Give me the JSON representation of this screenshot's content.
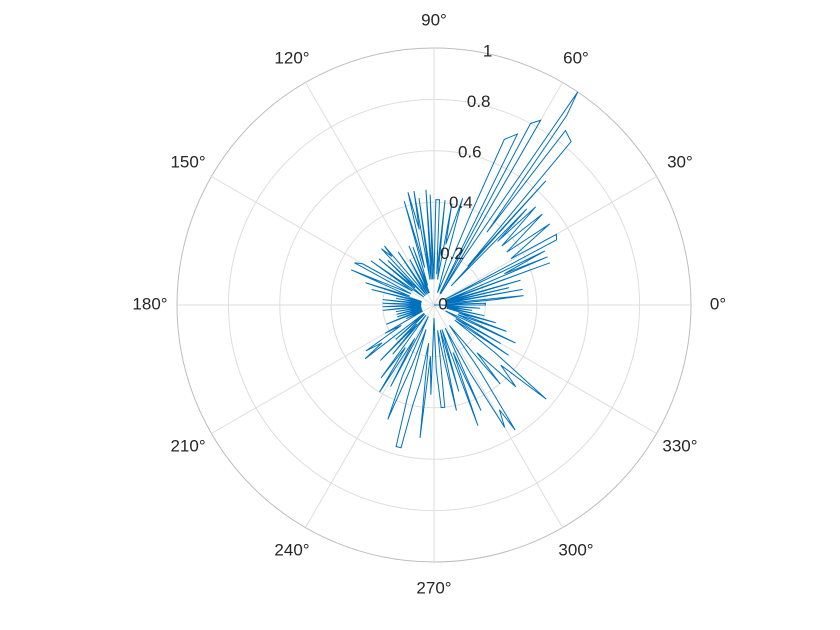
{
  "chart_data": {
    "type": "line",
    "coordinate_system": "polar",
    "theta_ticks": [
      {
        "angle": 0,
        "label": "0°"
      },
      {
        "angle": 30,
        "label": "30°"
      },
      {
        "angle": 60,
        "label": "60°"
      },
      {
        "angle": 90,
        "label": "90°"
      },
      {
        "angle": 120,
        "label": "120°"
      },
      {
        "angle": 150,
        "label": "150°"
      },
      {
        "angle": 180,
        "label": "180°"
      },
      {
        "angle": 210,
        "label": "210°"
      },
      {
        "angle": 240,
        "label": "240°"
      },
      {
        "angle": 270,
        "label": "270°"
      },
      {
        "angle": 300,
        "label": "300°"
      },
      {
        "angle": 330,
        "label": "330°"
      }
    ],
    "r_ticks": [
      {
        "value": 0,
        "label": "0"
      },
      {
        "value": 0.2,
        "label": "0.2"
      },
      {
        "value": 0.4,
        "label": "0.4"
      },
      {
        "value": 0.6,
        "label": "0.6"
      },
      {
        "value": 0.8,
        "label": "0.8"
      },
      {
        "value": 1,
        "label": "1"
      }
    ],
    "rlim": [
      0,
      1
    ],
    "grid": true,
    "series": [
      {
        "color": "#0072BD",
        "points": [
          [
            0,
            0
          ],
          [
            0,
            0.2
          ],
          [
            2,
            0.2
          ],
          [
            3,
            0.05
          ],
          [
            5,
            0.24
          ],
          [
            6,
            0.35
          ],
          [
            8,
            0.05
          ],
          [
            10,
            0.35
          ],
          [
            11,
            0.05
          ],
          [
            13,
            0.3
          ],
          [
            14,
            0.05
          ],
          [
            16,
            0.35
          ],
          [
            18,
            0.05
          ],
          [
            20,
            0.43
          ],
          [
            20,
            0.48
          ],
          [
            21,
            0.05
          ],
          [
            23,
            0.48
          ],
          [
            24,
            0.3
          ],
          [
            26,
            0.48
          ],
          [
            27,
            0.05
          ],
          [
            28,
            0.54
          ],
          [
            30,
            0.55
          ],
          [
            31,
            0.35
          ],
          [
            35,
            0.55
          ],
          [
            36,
            0.35
          ],
          [
            40,
            0.55
          ],
          [
            41,
            0.35
          ],
          [
            44,
            0.55
          ],
          [
            45,
            0.35
          ],
          [
            46,
            0.52
          ],
          [
            48,
            0.1
          ],
          [
            48,
            0.65
          ],
          [
            49,
            0.2
          ],
          [
            50,
            0.83
          ],
          [
            53,
            0.85
          ],
          [
            54,
            0.35
          ],
          [
            55,
            0.9
          ],
          [
            56,
            1.0
          ],
          [
            58,
            0.22
          ],
          [
            59,
            0.05
          ],
          [
            60,
            0.83
          ],
          [
            62,
            0.8
          ],
          [
            63,
            0.05
          ],
          [
            64,
            0.74
          ],
          [
            67,
            0.7
          ],
          [
            68,
            0.38
          ],
          [
            70,
            0.1
          ],
          [
            74,
            0.05
          ],
          [
            75,
            0.43
          ],
          [
            79,
            0.24
          ],
          [
            80,
            0.4
          ],
          [
            82,
            0.1
          ],
          [
            84,
            0.41
          ],
          [
            85,
            0.12
          ],
          [
            87,
            0.41
          ],
          [
            89,
            0.41
          ],
          [
            90,
            0.1
          ],
          [
            92,
            0.43
          ],
          [
            93,
            0.1
          ],
          [
            94,
            0.45
          ],
          [
            96,
            0.1
          ],
          [
            98,
            0.42
          ],
          [
            99,
            0.1
          ],
          [
            100,
            0.45
          ],
          [
            101,
            0.3
          ],
          [
            103,
            0.45
          ],
          [
            104,
            0.15
          ],
          [
            106,
            0.42
          ],
          [
            108,
            0.08
          ],
          [
            110,
            0.24
          ],
          [
            111,
            0.05
          ],
          [
            113,
            0.25
          ],
          [
            115,
            0.05
          ],
          [
            118,
            0.2
          ],
          [
            121,
            0.05
          ],
          [
            124,
            0.25
          ],
          [
            127,
            0.05
          ],
          [
            130,
            0.3
          ],
          [
            131,
            0.25
          ],
          [
            133,
            0.3
          ],
          [
            134,
            0.05
          ],
          [
            136,
            0.25
          ],
          [
            138,
            0.1
          ],
          [
            140,
            0.28
          ],
          [
            142,
            0.05
          ],
          [
            145,
            0.3
          ],
          [
            147,
            0.1
          ],
          [
            150,
            0.32
          ],
          [
            152,
            0.35
          ],
          [
            154,
            0.1
          ],
          [
            157,
            0.35
          ],
          [
            160,
            0.1
          ],
          [
            162,
            0.28
          ],
          [
            164,
            0.05
          ],
          [
            166,
            0.25
          ],
          [
            168,
            0.05
          ],
          [
            170,
            0.15
          ],
          [
            172,
            0.05
          ],
          [
            174,
            0.2
          ],
          [
            176,
            0.05
          ],
          [
            178,
            0.2
          ],
          [
            180,
            0.05
          ],
          [
            182,
            0.2
          ],
          [
            184,
            0.05
          ],
          [
            186,
            0.2
          ],
          [
            188,
            0.05
          ],
          [
            190,
            0.15
          ],
          [
            192,
            0.05
          ],
          [
            194,
            0.15
          ],
          [
            196,
            0.05
          ],
          [
            198,
            0.15
          ],
          [
            200,
            0.05
          ],
          [
            202,
            0.2
          ],
          [
            204,
            0.05
          ],
          [
            206,
            0.12
          ],
          [
            208,
            0.05
          ],
          [
            210,
            0.22
          ],
          [
            212,
            0.15
          ],
          [
            214,
            0.32
          ],
          [
            216,
            0.25
          ],
          [
            218,
            0.34
          ],
          [
            220,
            0.05
          ],
          [
            222,
            0.2
          ],
          [
            224,
            0.05
          ],
          [
            226,
            0.3
          ],
          [
            228,
            0.1
          ],
          [
            230,
            0.25
          ],
          [
            232,
            0.05
          ],
          [
            234,
            0.35
          ],
          [
            236,
            0.2
          ],
          [
            238,
            0.4
          ],
          [
            240,
            0.15
          ],
          [
            242,
            0.36
          ],
          [
            244,
            0.05
          ],
          [
            246,
            0.3
          ],
          [
            248,
            0.48
          ],
          [
            250,
            0.25
          ],
          [
            252,
            0.1
          ],
          [
            254,
            0.38
          ],
          [
            255,
            0.57
          ],
          [
            257,
            0.57
          ],
          [
            258,
            0.4
          ],
          [
            260,
            0.3
          ],
          [
            262,
            0.15
          ],
          [
            264,
            0.52
          ],
          [
            266,
            0.2
          ],
          [
            268,
            0.35
          ],
          [
            270,
            0.05
          ],
          [
            272,
            0.25
          ],
          [
            274,
            0.4
          ],
          [
            276,
            0.4
          ],
          [
            278,
            0.1
          ],
          [
            280,
            0.2
          ],
          [
            282,
            0.42
          ],
          [
            284,
            0.1
          ],
          [
            286,
            0.35
          ],
          [
            288,
            0.1
          ],
          [
            290,
            0.5
          ],
          [
            292,
            0.2
          ],
          [
            294,
            0.45
          ],
          [
            296,
            0.1
          ],
          [
            298,
            0.3
          ],
          [
            300,
            0.55
          ],
          [
            302,
            0.48
          ],
          [
            303,
            0.58
          ],
          [
            305,
            0.3
          ],
          [
            307,
            0.1
          ],
          [
            310,
            0.4
          ],
          [
            312,
            0.25
          ],
          [
            315,
            0.45
          ],
          [
            318,
            0.35
          ],
          [
            320,
            0.57
          ],
          [
            322,
            0.3
          ],
          [
            324,
            0.1
          ],
          [
            326,
            0.35
          ],
          [
            328,
            0.1
          ],
          [
            330,
            0.3
          ],
          [
            333,
            0.05
          ],
          [
            335,
            0.35
          ],
          [
            338,
            0.1
          ],
          [
            340,
            0.3
          ],
          [
            342,
            0.1
          ],
          [
            344,
            0.25
          ],
          [
            346,
            0.05
          ],
          [
            348,
            0.2
          ],
          [
            350,
            0.05
          ],
          [
            352,
            0.15
          ],
          [
            354,
            0.05
          ],
          [
            356,
            0.18
          ],
          [
            358,
            0.05
          ],
          [
            360,
            0.03
          ]
        ]
      }
    ]
  }
}
